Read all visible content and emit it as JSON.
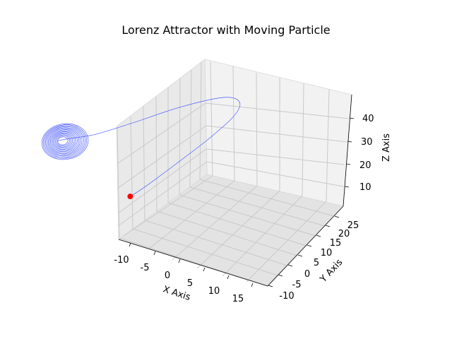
{
  "chart_data": {
    "type": "line3d",
    "title": "Lorenz Attractor with Moving Particle",
    "xlabel": "X Axis",
    "ylabel": "Y Axis",
    "zlabel": "Z Axis",
    "x_ticks": [
      -10,
      -5,
      0,
      5,
      10,
      15
    ],
    "y_ticks": [
      -10,
      -5,
      0,
      5,
      10,
      15,
      20,
      25
    ],
    "z_ticks": [
      10,
      20,
      30,
      40
    ],
    "xlim": [
      -12,
      18
    ],
    "ylim": [
      -13,
      27
    ],
    "zlim": [
      3,
      45
    ],
    "grid": true,
    "series": [
      {
        "color": "#4a5cff",
        "x": [
          1,
          2.6,
          6.5,
          11.5,
          15.5,
          17.0,
          15.6,
          10.0,
          3.0,
          -3.0,
          -7.5,
          -9.5,
          -9.9
        ],
        "y": [
          1,
          5.0,
          11.5,
          17.0,
          19.5,
          18.0,
          13.0,
          5.0,
          -2.5,
          -7.0,
          -9.0,
          -9.8,
          -10.0
        ],
        "z": [
          1,
          3.0,
          10.0,
          20.0,
          30.0,
          38.0,
          43.0,
          42.0,
          37.0,
          32.0,
          29.0,
          27.5,
          27.0
        ]
      }
    ],
    "spiral_region": {
      "x_center": -9,
      "y_center": -9,
      "z_center": 27,
      "rx_min": 1.0,
      "rx_max": 4.5
    },
    "particle": {
      "x": 1,
      "y": 1,
      "z": 1,
      "color": "#ff0000"
    }
  }
}
